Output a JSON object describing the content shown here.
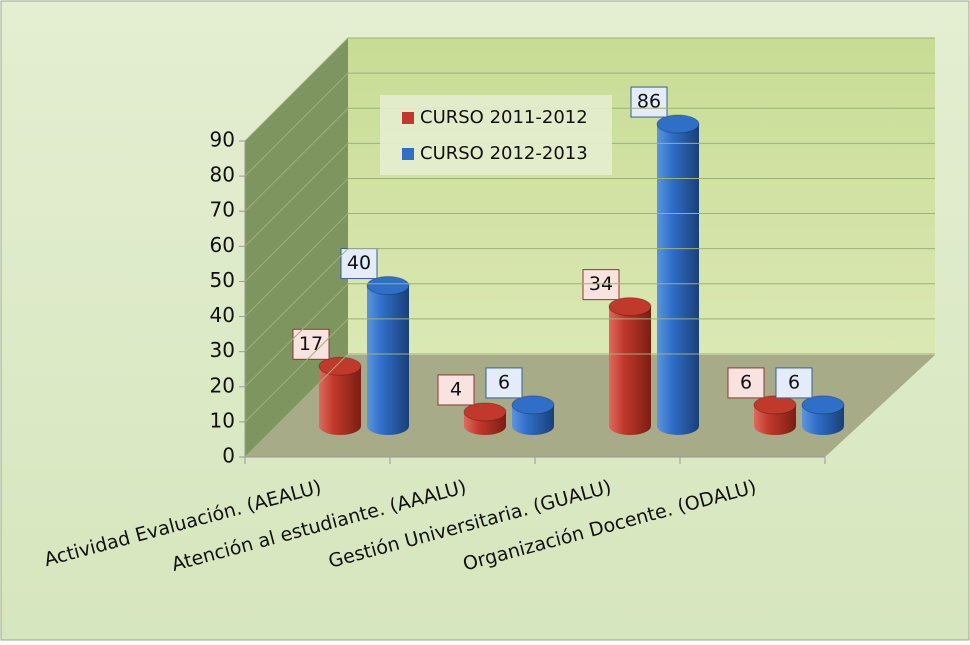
{
  "chart_data": {
    "type": "bar3d",
    "categories": [
      "Actividad Evaluación. (AEALU)",
      "Atención al estudiante. (AAALU)",
      "Gestión Universitaria. (GUALU)",
      "Organización Docente.  (ODALU)"
    ],
    "series": [
      {
        "name": "CURSO 2011-2012",
        "color": "#c0392b",
        "values": [
          17,
          4,
          34,
          6
        ]
      },
      {
        "name": "CURSO 2012-2013",
        "color": "#2f6fc8",
        "values": [
          40,
          6,
          86,
          6
        ]
      }
    ],
    "ylim": [
      0,
      90
    ],
    "yticks": [
      0,
      10,
      20,
      30,
      40,
      50,
      60,
      70,
      80,
      90
    ],
    "grid": true,
    "legend": "top"
  }
}
